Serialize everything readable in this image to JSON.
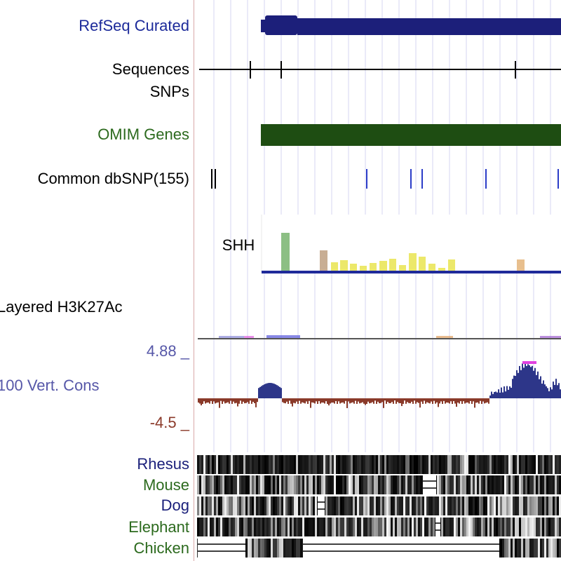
{
  "colors": {
    "refseq": "#1c1f7a",
    "omim": "#1e4d12",
    "snp_tick": "#2b3cc8",
    "cons_pos": "#2d3689",
    "cons_neg": "#8a3a2a",
    "grid": "#d4d4f2",
    "conservation_label": "#5657a8",
    "axis_neg": "#8b3a2a",
    "species_dark_blue": "#1a1f7a",
    "species_green": "#2c6a1e"
  },
  "tracks": {
    "refseq": {
      "label": "RefSeq Curated"
    },
    "sequences": {
      "label": "Sequences"
    },
    "snps": {
      "label": "SNPs"
    },
    "omim": {
      "label": "OMIM Genes"
    },
    "dbsnp": {
      "label": "Common dbSNP(155)"
    },
    "gene": {
      "label": "SHH"
    },
    "h3k27ac": {
      "label": "Layered H3K27Ac"
    },
    "cons": {
      "label": "100 Vert. Cons",
      "max": "4.88 _",
      "min": "-4.5 _"
    }
  },
  "species": [
    {
      "name": "Rhesus",
      "color": "#1a1f7a"
    },
    {
      "name": "Mouse",
      "color": "#2c6a1e"
    },
    {
      "name": "Dog",
      "color": "#1a1f7a"
    },
    {
      "name": "Elephant",
      "color": "#2c6a1e"
    },
    {
      "name": "Chicken",
      "color": "#2c6a1e"
    }
  ]
}
